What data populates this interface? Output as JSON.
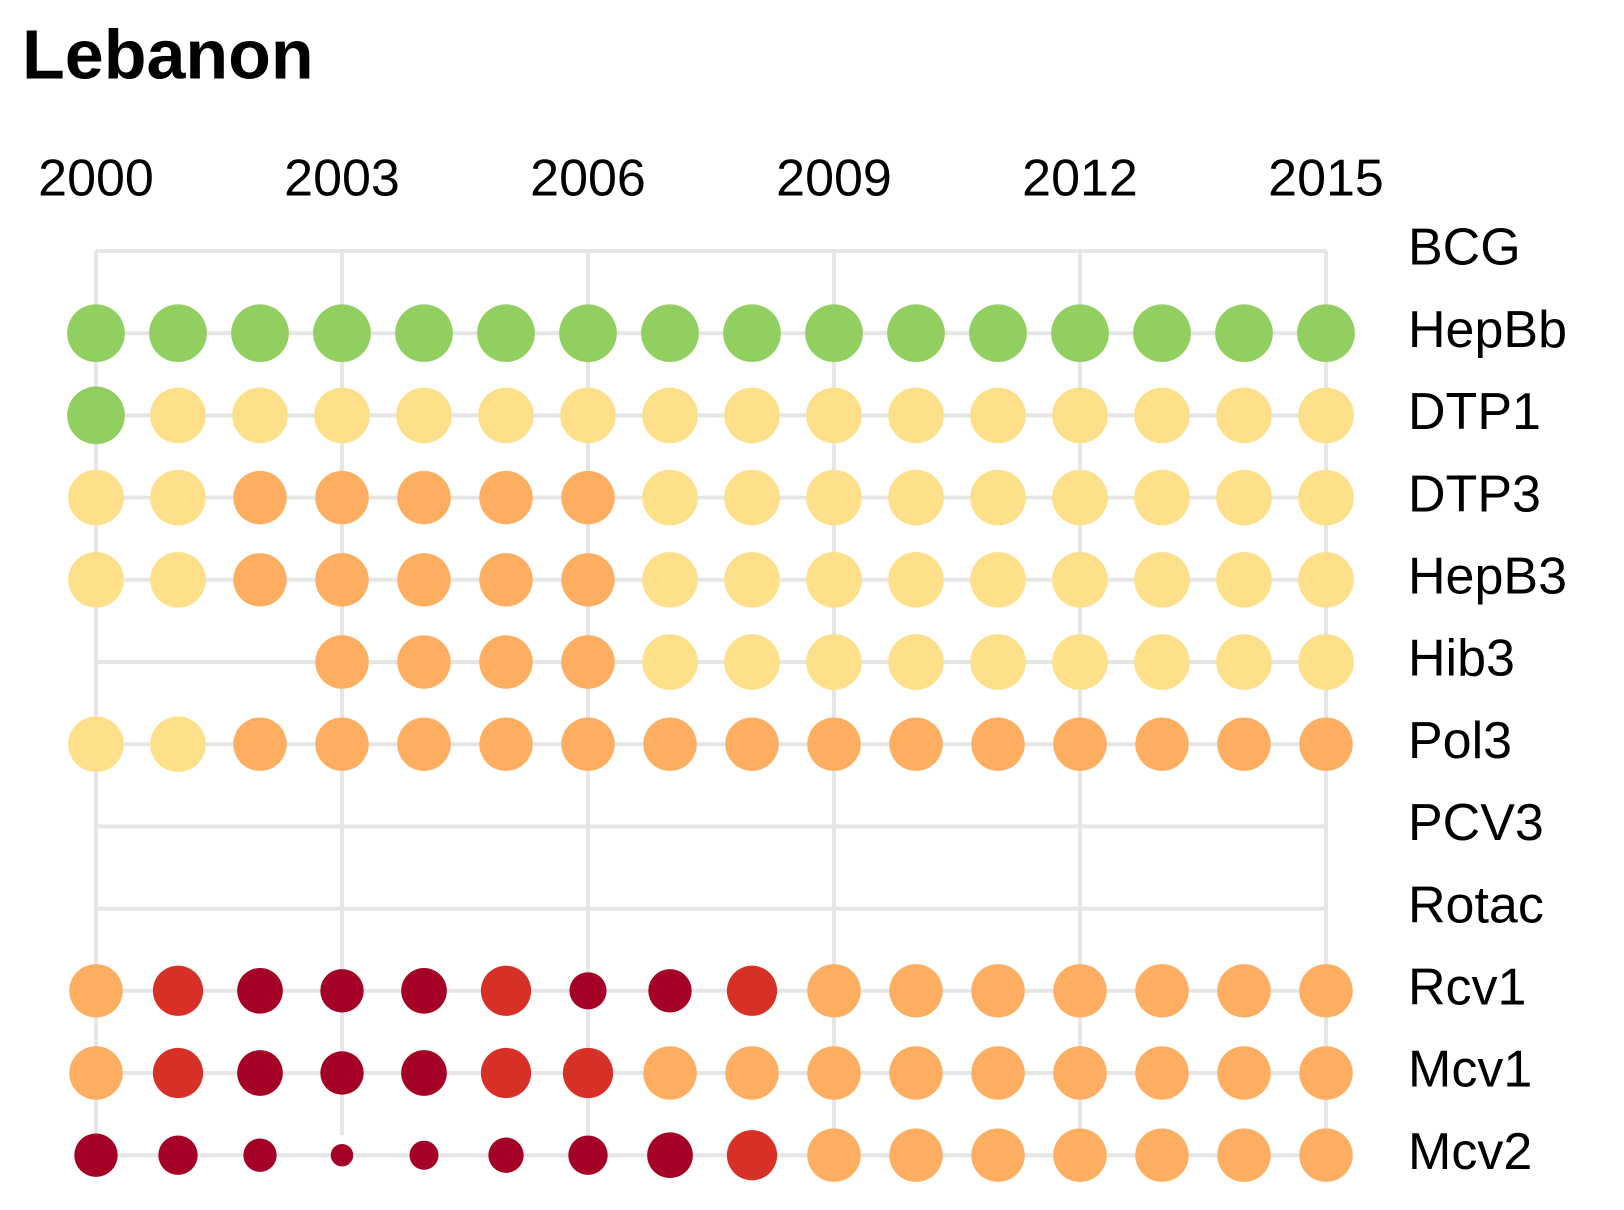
{
  "chart_data": {
    "type": "dot-matrix",
    "title": "Lebanon",
    "x": [
      2000,
      2001,
      2002,
      2003,
      2004,
      2005,
      2006,
      2007,
      2008,
      2009,
      2010,
      2011,
      2012,
      2013,
      2014,
      2015
    ],
    "xlim": [
      2000,
      2015
    ],
    "xticks": [
      2000,
      2003,
      2006,
      2009,
      2012,
      2015
    ],
    "grid": true,
    "size_max": 100,
    "color_scale": [
      {
        "min": 95,
        "color": "#91cf60"
      },
      {
        "min": 90,
        "color": "#fee08b"
      },
      {
        "min": 80,
        "color": "#fdae61"
      },
      {
        "min": 70,
        "color": "#d73027"
      },
      {
        "min": 0,
        "color": "#a50026"
      }
    ],
    "series": [
      {
        "name": "BCG",
        "values": [
          null,
          null,
          null,
          null,
          null,
          null,
          null,
          null,
          null,
          null,
          null,
          null,
          null,
          null,
          null,
          null
        ]
      },
      {
        "name": "HepBb",
        "values": [
          99,
          99,
          99,
          99,
          99,
          99,
          99,
          99,
          99,
          99,
          99,
          99,
          99,
          99,
          99,
          99
        ]
      },
      {
        "name": "DTP1",
        "values": [
          99,
          92,
          92,
          92,
          92,
          92,
          92,
          92,
          92,
          92,
          92,
          92,
          92,
          92,
          92,
          92
        ]
      },
      {
        "name": "DTP3",
        "values": [
          92,
          92,
          85,
          85,
          85,
          85,
          85,
          92,
          92,
          92,
          92,
          92,
          92,
          92,
          92,
          92
        ]
      },
      {
        "name": "HepB3",
        "values": [
          92,
          92,
          85,
          85,
          85,
          85,
          85,
          92,
          92,
          92,
          92,
          92,
          92,
          92,
          92,
          92
        ]
      },
      {
        "name": "Hib3",
        "values": [
          null,
          null,
          null,
          85,
          85,
          85,
          85,
          92,
          92,
          92,
          92,
          92,
          92,
          92,
          92,
          92
        ]
      },
      {
        "name": "Pol3",
        "values": [
          92,
          92,
          85,
          85,
          85,
          85,
          85,
          85,
          85,
          85,
          85,
          85,
          85,
          85,
          85,
          85
        ]
      },
      {
        "name": "PCV3",
        "values": [
          null,
          null,
          null,
          null,
          null,
          null,
          null,
          null,
          null,
          null,
          null,
          null,
          null,
          null,
          null,
          null
        ]
      },
      {
        "name": "Rotac",
        "values": [
          null,
          null,
          null,
          null,
          null,
          null,
          null,
          null,
          null,
          null,
          null,
          null,
          null,
          null,
          null,
          null
        ]
      },
      {
        "name": "Rcv1",
        "values": [
          85,
          75,
          62,
          56,
          62,
          75,
          41,
          56,
          75,
          85,
          85,
          85,
          85,
          85,
          85,
          85
        ]
      },
      {
        "name": "Mcv1",
        "values": [
          85,
          75,
          62,
          56,
          62,
          75,
          75,
          85,
          85,
          85,
          85,
          85,
          85,
          85,
          85,
          85
        ]
      },
      {
        "name": "Mcv2",
        "values": [
          56,
          46,
          33,
          15,
          25,
          37,
          46,
          62,
          75,
          85,
          85,
          85,
          85,
          85,
          85,
          85
        ]
      }
    ]
  }
}
